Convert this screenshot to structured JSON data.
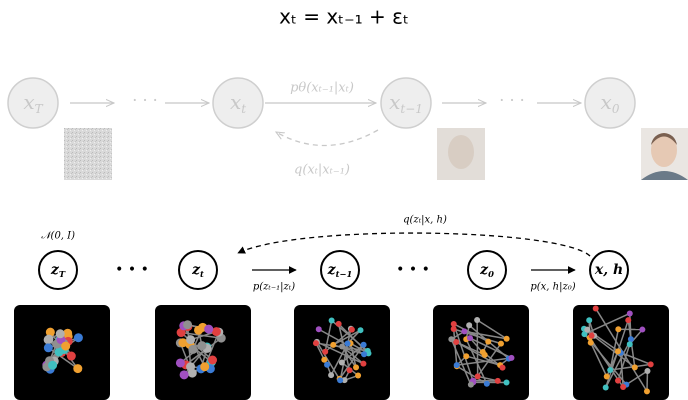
{
  "title": "xₜ = xₜ₋₁ + εₜ",
  "top_diagram": {
    "nodes": [
      {
        "base": "x",
        "sub": "T"
      },
      {
        "base": "x",
        "sub": "t"
      },
      {
        "base": "x",
        "sub": "t−1"
      },
      {
        "base": "x",
        "sub": "0"
      }
    ],
    "ellipses": [
      "· · ·",
      "· · ·"
    ],
    "forward_label": "pθ(xₜ₋₁|xₜ)",
    "backward_label": "q(xₜ|xₜ₋₁)"
  },
  "bottom_diagram": {
    "prior_label": "𝒩(0, I)",
    "nodes": [
      {
        "base": "z",
        "sub": "T"
      },
      {
        "base": "z",
        "sub": "t"
      },
      {
        "base": "z",
        "sub": "t−1"
      },
      {
        "base": "z",
        "sub": "0"
      },
      {
        "base": "x, h"
      }
    ],
    "ellipses": [
      "• • •",
      "• • •"
    ],
    "forward_labels": [
      "p(zₜ₋₁|zₜ)",
      "p(x, h|z₀)"
    ],
    "backward_label": "q(zₜ|x, h)"
  }
}
